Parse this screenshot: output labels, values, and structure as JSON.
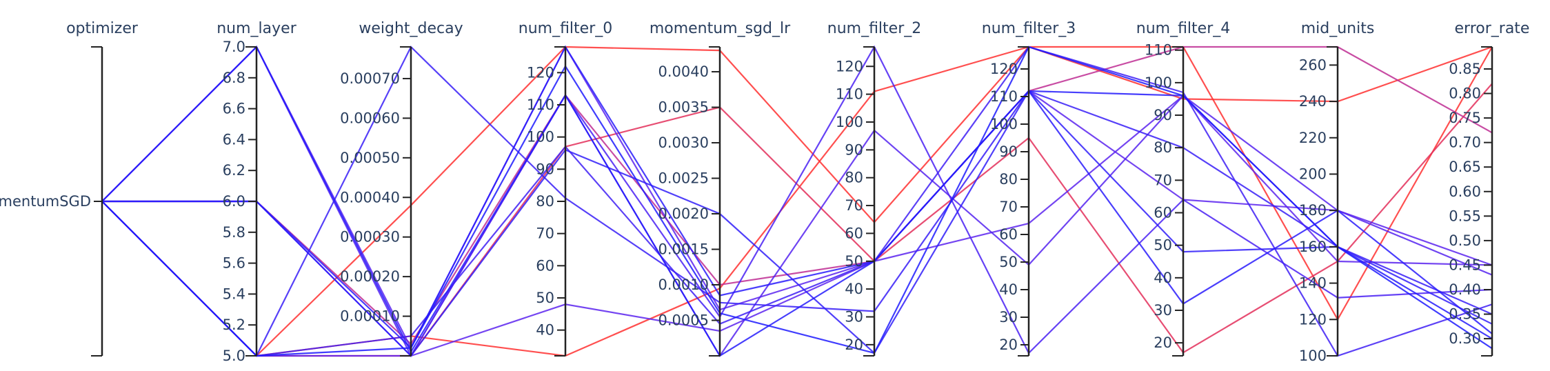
{
  "chart_data": {
    "type": "parallel_coordinates",
    "title": "",
    "colors": {
      "low_error": "#1a1aff",
      "mid_error": "#8a2be2",
      "high_error": "#ff3030",
      "axis": "#222222",
      "text": "#2a3f5f"
    },
    "axes": [
      {
        "name": "optimizer",
        "label": "optimizer",
        "categorical": true,
        "range": [
          0,
          1
        ],
        "ticks": [
          {
            "v": 0.5,
            "t": "MomentumSGD"
          }
        ]
      },
      {
        "name": "num_layer",
        "label": "num_layer",
        "range": [
          5.0,
          7.0
        ],
        "ticks": [
          {
            "v": 5.0,
            "t": "5.0"
          },
          {
            "v": 5.2,
            "t": "5.2"
          },
          {
            "v": 5.4,
            "t": "5.4"
          },
          {
            "v": 5.6,
            "t": "5.6"
          },
          {
            "v": 5.8,
            "t": "5.8"
          },
          {
            "v": 6.0,
            "t": "6.0"
          },
          {
            "v": 6.2,
            "t": "6.2"
          },
          {
            "v": 6.4,
            "t": "6.4"
          },
          {
            "v": 6.6,
            "t": "6.6"
          },
          {
            "v": 6.8,
            "t": "6.8"
          },
          {
            "v": 7.0,
            "t": "7.0"
          }
        ]
      },
      {
        "name": "weight_decay",
        "label": "weight_decay",
        "range": [
          0.0,
          0.00078
        ],
        "ticks": [
          {
            "v": 0.0001,
            "t": "0.00010"
          },
          {
            "v": 0.0002,
            "t": "0.00020"
          },
          {
            "v": 0.0003,
            "t": "0.00030"
          },
          {
            "v": 0.0004,
            "t": "0.00040"
          },
          {
            "v": 0.0005,
            "t": "0.00050"
          },
          {
            "v": 0.0006,
            "t": "0.00060"
          },
          {
            "v": 0.0007,
            "t": "0.00070"
          }
        ]
      },
      {
        "name": "num_filter_0",
        "label": "num_filter_0",
        "range": [
          32,
          128
        ],
        "ticks": [
          {
            "v": 40,
            "t": "40"
          },
          {
            "v": 50,
            "t": "50"
          },
          {
            "v": 60,
            "t": "60"
          },
          {
            "v": 70,
            "t": "70"
          },
          {
            "v": 80,
            "t": "80"
          },
          {
            "v": 90,
            "t": "90"
          },
          {
            "v": 100,
            "t": "100"
          },
          {
            "v": 110,
            "t": "110"
          },
          {
            "v": 120,
            "t": "120"
          }
        ]
      },
      {
        "name": "momentum_sgd_lr",
        "label": "momentum_sgd_lr",
        "range": [
          0.0,
          0.00435
        ],
        "ticks": [
          {
            "v": 0.0005,
            "t": "0.0005"
          },
          {
            "v": 0.001,
            "t": "0.0010"
          },
          {
            "v": 0.0015,
            "t": "0.0015"
          },
          {
            "v": 0.002,
            "t": "0.0020"
          },
          {
            "v": 0.0025,
            "t": "0.0025"
          },
          {
            "v": 0.003,
            "t": "0.0030"
          },
          {
            "v": 0.0035,
            "t": "0.0035"
          },
          {
            "v": 0.004,
            "t": "0.0040"
          }
        ]
      },
      {
        "name": "num_filter_2",
        "label": "num_filter_2",
        "range": [
          16,
          127
        ],
        "ticks": [
          {
            "v": 20,
            "t": "20"
          },
          {
            "v": 30,
            "t": "30"
          },
          {
            "v": 40,
            "t": "40"
          },
          {
            "v": 50,
            "t": "50"
          },
          {
            "v": 60,
            "t": "60"
          },
          {
            "v": 70,
            "t": "70"
          },
          {
            "v": 80,
            "t": "80"
          },
          {
            "v": 90,
            "t": "90"
          },
          {
            "v": 100,
            "t": "100"
          },
          {
            "v": 110,
            "t": "110"
          },
          {
            "v": 120,
            "t": "120"
          }
        ]
      },
      {
        "name": "num_filter_3",
        "label": "num_filter_3",
        "range": [
          16,
          128
        ],
        "ticks": [
          {
            "v": 20,
            "t": "20"
          },
          {
            "v": 30,
            "t": "30"
          },
          {
            "v": 40,
            "t": "40"
          },
          {
            "v": 50,
            "t": "50"
          },
          {
            "v": 60,
            "t": "60"
          },
          {
            "v": 70,
            "t": "70"
          },
          {
            "v": 80,
            "t": "80"
          },
          {
            "v": 90,
            "t": "90"
          },
          {
            "v": 100,
            "t": "100"
          },
          {
            "v": 110,
            "t": "110"
          },
          {
            "v": 120,
            "t": "120"
          }
        ]
      },
      {
        "name": "num_filter_4",
        "label": "num_filter_4",
        "range": [
          16,
          111
        ],
        "ticks": [
          {
            "v": 20,
            "t": "20"
          },
          {
            "v": 30,
            "t": "30"
          },
          {
            "v": 40,
            "t": "40"
          },
          {
            "v": 50,
            "t": "50"
          },
          {
            "v": 60,
            "t": "60"
          },
          {
            "v": 70,
            "t": "70"
          },
          {
            "v": 80,
            "t": "80"
          },
          {
            "v": 90,
            "t": "90"
          },
          {
            "v": 100,
            "t": "100"
          },
          {
            "v": 110,
            "t": "110"
          }
        ]
      },
      {
        "name": "mid_units",
        "label": "mid_units",
        "range": [
          100,
          270
        ],
        "ticks": [
          {
            "v": 100,
            "t": "100"
          },
          {
            "v": 120,
            "t": "120"
          },
          {
            "v": 140,
            "t": "140"
          },
          {
            "v": 160,
            "t": "160"
          },
          {
            "v": 180,
            "t": "180"
          },
          {
            "v": 200,
            "t": "200"
          },
          {
            "v": 220,
            "t": "220"
          },
          {
            "v": 240,
            "t": "240"
          },
          {
            "v": 260,
            "t": "260"
          }
        ]
      },
      {
        "name": "error_rate",
        "label": "error_rate",
        "range": [
          0.265,
          0.895
        ],
        "ticks": [
          {
            "v": 0.3,
            "t": "0.30"
          },
          {
            "v": 0.35,
            "t": "0.35"
          },
          {
            "v": 0.4,
            "t": "0.40"
          },
          {
            "v": 0.45,
            "t": "0.45"
          },
          {
            "v": 0.5,
            "t": "0.50"
          },
          {
            "v": 0.55,
            "t": "0.55"
          },
          {
            "v": 0.6,
            "t": "0.60"
          },
          {
            "v": 0.65,
            "t": "0.65"
          },
          {
            "v": 0.7,
            "t": "0.70"
          },
          {
            "v": 0.75,
            "t": "0.75"
          },
          {
            "v": 0.8,
            "t": "0.80"
          },
          {
            "v": 0.85,
            "t": "0.85"
          }
        ]
      }
    ],
    "lines": [
      {
        "values": [
          0.5,
          5.0,
          5e-05,
          32,
          0.00095,
          111,
          128,
          95,
          240,
          0.895
        ]
      },
      {
        "values": [
          0.5,
          5.0,
          0.00038,
          128,
          0.0043,
          64,
          128,
          111,
          120,
          0.895
        ]
      },
      {
        "values": [
          0.5,
          5.0,
          0.0,
          97,
          0.0035,
          50,
          95,
          17,
          152,
          0.82
        ]
      },
      {
        "values": [
          0.5,
          6.0,
          3e-05,
          113,
          0.001,
          50,
          112,
          111,
          270,
          0.72
        ]
      },
      {
        "values": [
          0.5,
          7.0,
          2e-05,
          128,
          0.00065,
          50,
          112,
          64,
          180,
          0.45
        ]
      },
      {
        "values": [
          0.5,
          6.0,
          0.0,
          113,
          0.00055,
          127,
          17,
          64,
          132,
          0.4
        ]
      },
      {
        "values": [
          0.5,
          5.0,
          0.0,
          48,
          0.00035,
          50,
          64,
          96,
          152,
          0.45
        ]
      },
      {
        "values": [
          0.5,
          7.0,
          0.0,
          113,
          0.0,
          97,
          49,
          96,
          180,
          0.43
        ]
      },
      {
        "values": [
          0.5,
          5.0,
          0.00078,
          81,
          0.00075,
          32,
          112,
          80,
          160,
          0.35
        ]
      },
      {
        "values": [
          0.5,
          6.0,
          0.0,
          96,
          0.002,
          17,
          112,
          48,
          160,
          0.33
        ]
      },
      {
        "values": [
          0.5,
          5.0,
          5e-05,
          97,
          0.00045,
          50,
          128,
          97,
          100,
          0.37
        ]
      },
      {
        "values": [
          0.5,
          6.0,
          2e-05,
          128,
          0.00085,
          50,
          112,
          32,
          180,
          0.31
        ]
      },
      {
        "values": [
          0.5,
          5.0,
          2e-05,
          122,
          0.0006,
          17,
          128,
          96,
          160,
          0.28
        ]
      },
      {
        "values": [
          0.5,
          7.0,
          1e-05,
          113,
          0.0,
          50,
          112,
          96,
          160,
          0.3
        ]
      }
    ]
  }
}
